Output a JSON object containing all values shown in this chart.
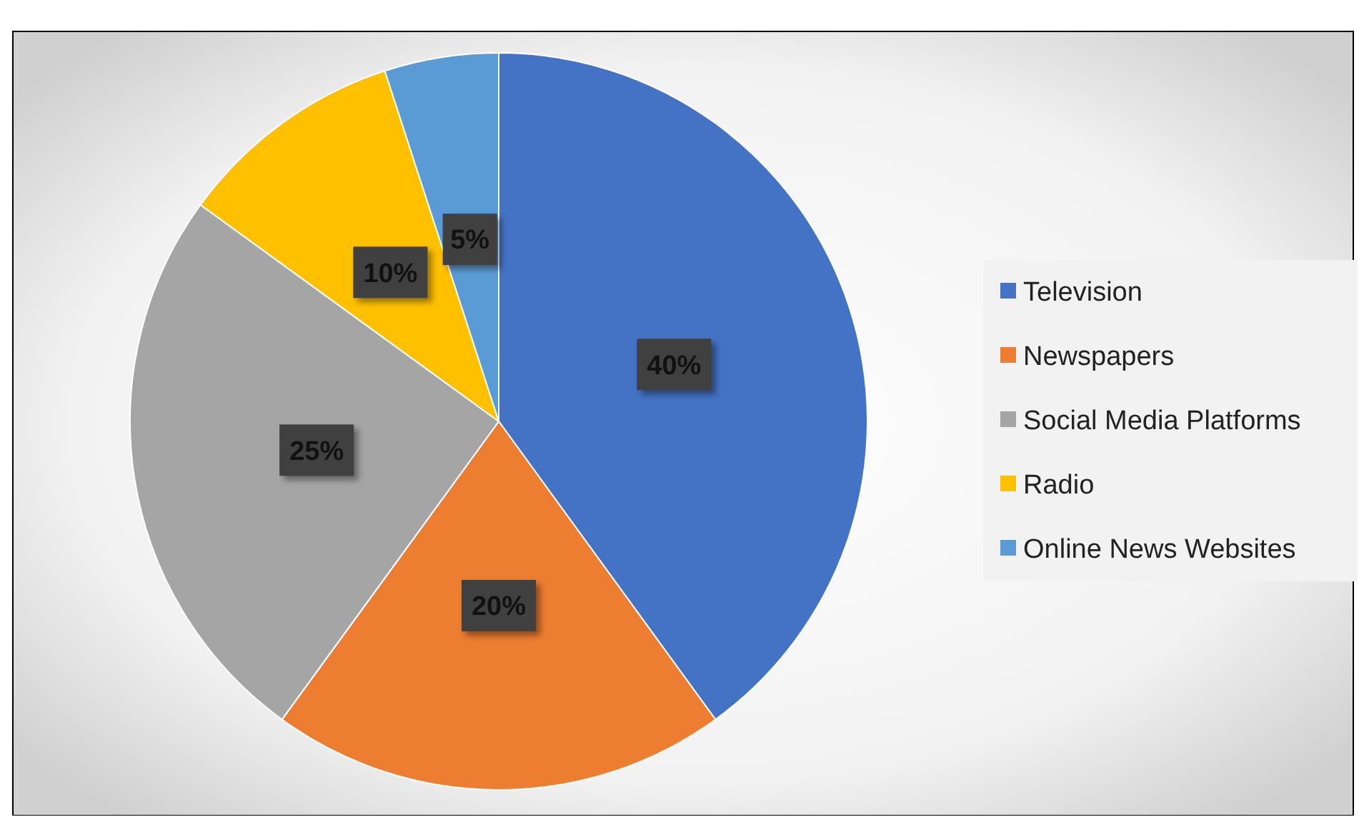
{
  "chart_data": {
    "type": "pie",
    "categories": [
      "Television",
      "Newspapers",
      "Social Media Platforms",
      "Radio",
      "Online News Websites"
    ],
    "values": [
      40,
      20,
      25,
      10,
      5
    ],
    "value_labels": [
      "40%",
      "20%",
      "25%",
      "10%",
      "5%"
    ],
    "colors": [
      "#4472c4",
      "#ed7d31",
      "#a5a5a5",
      "#ffc000",
      "#5b9bd5"
    ],
    "legend": "right"
  }
}
